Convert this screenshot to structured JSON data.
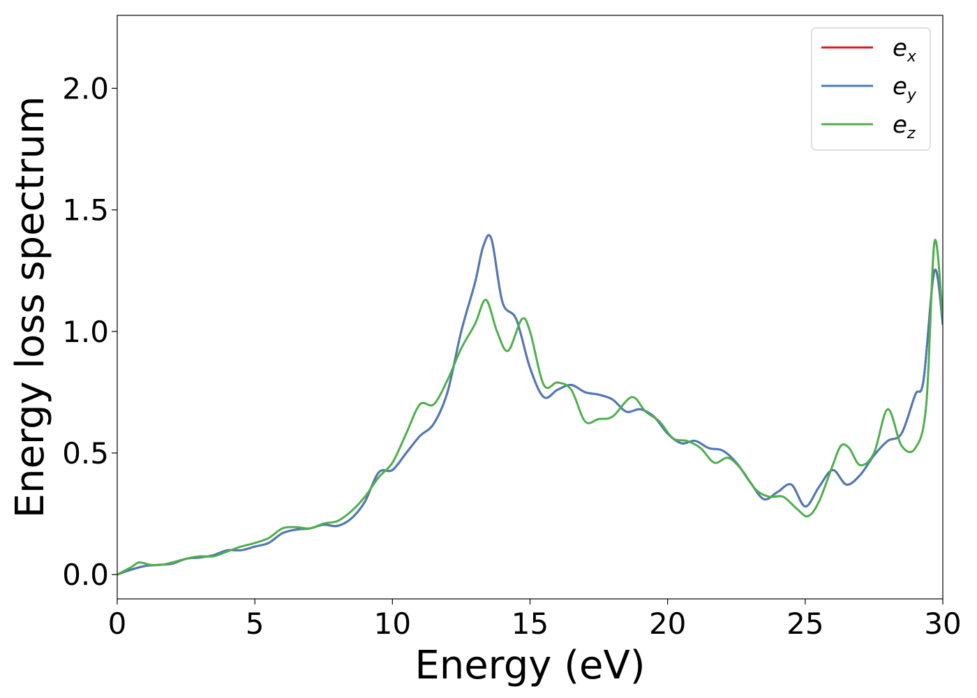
{
  "chart_data": {
    "type": "line",
    "title": "",
    "xlabel": "Energy (eV)",
    "ylabel": "Energy loss spectrum",
    "xlim": [
      0,
      30
    ],
    "ylim": [
      -0.1,
      2.3
    ],
    "grid": false,
    "legend_position": "top-right",
    "x_ticks": [
      0,
      5,
      10,
      15,
      20,
      25,
      30
    ],
    "x_tick_labels": [
      "0",
      "5",
      "10",
      "15",
      "20",
      "25",
      "30"
    ],
    "y_ticks": [
      0.0,
      0.5,
      1.0,
      1.5,
      2.0
    ],
    "y_tick_labels": [
      "0.0",
      "0.5",
      "1.0",
      "1.5",
      "2.0"
    ],
    "series": [
      {
        "name": "ex",
        "label_base": "e",
        "label_sub": "x",
        "color": "#e41a1c",
        "x": [
          0,
          0.5,
          1,
          1.5,
          2,
          2.5,
          3,
          3.5,
          4,
          4.5,
          5,
          5.5,
          6,
          6.5,
          7,
          7.5,
          8,
          8.5,
          9,
          9.5,
          10,
          10.5,
          11,
          11.5,
          12,
          12.5,
          13,
          13.3,
          13.6,
          14,
          14.5,
          15,
          15.5,
          16,
          16.5,
          17,
          17.5,
          18,
          18.5,
          19,
          19.5,
          20,
          20.5,
          21,
          21.5,
          22,
          22.5,
          23,
          23.5,
          24,
          24.5,
          25,
          25.5,
          26,
          26.5,
          27,
          27.5,
          28,
          28.5,
          29,
          29.3,
          29.7,
          30
        ],
        "y": [
          0.0,
          0.02,
          0.035,
          0.04,
          0.045,
          0.065,
          0.07,
          0.08,
          0.1,
          0.1,
          0.115,
          0.13,
          0.17,
          0.185,
          0.19,
          0.205,
          0.2,
          0.23,
          0.3,
          0.42,
          0.43,
          0.5,
          0.57,
          0.62,
          0.75,
          1.0,
          1.2,
          1.35,
          1.38,
          1.12,
          1.05,
          0.85,
          0.73,
          0.76,
          0.78,
          0.75,
          0.74,
          0.72,
          0.67,
          0.68,
          0.65,
          0.58,
          0.54,
          0.55,
          0.52,
          0.51,
          0.46,
          0.38,
          0.31,
          0.34,
          0.37,
          0.28,
          0.36,
          0.43,
          0.37,
          0.41,
          0.49,
          0.55,
          0.58,
          0.74,
          0.8,
          1.25,
          1.03
        ]
      },
      {
        "name": "ey",
        "label_base": "e",
        "label_sub": "y",
        "color": "#4a7ab8",
        "x": [
          0,
          0.5,
          1,
          1.5,
          2,
          2.5,
          3,
          3.5,
          4,
          4.5,
          5,
          5.5,
          6,
          6.5,
          7,
          7.5,
          8,
          8.5,
          9,
          9.5,
          10,
          10.5,
          11,
          11.5,
          12,
          12.5,
          13,
          13.3,
          13.6,
          14,
          14.5,
          15,
          15.5,
          16,
          16.5,
          17,
          17.5,
          18,
          18.5,
          19,
          19.5,
          20,
          20.5,
          21,
          21.5,
          22,
          22.5,
          23,
          23.5,
          24,
          24.5,
          25,
          25.5,
          26,
          26.5,
          27,
          27.5,
          28,
          28.5,
          29,
          29.3,
          29.7,
          30
        ],
        "y": [
          0.0,
          0.02,
          0.035,
          0.04,
          0.045,
          0.065,
          0.07,
          0.08,
          0.1,
          0.1,
          0.115,
          0.13,
          0.17,
          0.185,
          0.19,
          0.205,
          0.2,
          0.23,
          0.3,
          0.42,
          0.43,
          0.5,
          0.57,
          0.62,
          0.75,
          1.0,
          1.2,
          1.35,
          1.38,
          1.12,
          1.05,
          0.85,
          0.73,
          0.76,
          0.78,
          0.75,
          0.74,
          0.72,
          0.67,
          0.68,
          0.65,
          0.58,
          0.54,
          0.55,
          0.52,
          0.51,
          0.46,
          0.38,
          0.31,
          0.34,
          0.37,
          0.28,
          0.36,
          0.43,
          0.37,
          0.41,
          0.49,
          0.55,
          0.58,
          0.74,
          0.8,
          1.25,
          1.03
        ]
      },
      {
        "name": "ez",
        "label_base": "e",
        "label_sub": "z",
        "color": "#4daf4a",
        "x": [
          0,
          0.5,
          0.8,
          1.2,
          1.6,
          2,
          2.5,
          3,
          3.5,
          4,
          4.5,
          5,
          5.5,
          6,
          6.5,
          7,
          7.5,
          8,
          8.5,
          9,
          9.5,
          10,
          10.5,
          11,
          11.5,
          12,
          12.5,
          13,
          13.4,
          13.8,
          14.2,
          14.7,
          15,
          15.5,
          16,
          16.5,
          17,
          17.5,
          18,
          18.7,
          19.2,
          19.7,
          20.2,
          20.7,
          21.2,
          21.7,
          22.2,
          22.7,
          23.2,
          23.7,
          24.2,
          24.7,
          25.1,
          25.5,
          26,
          26.3,
          26.6,
          27,
          27.5,
          28,
          28.5,
          29,
          29.4,
          29.7,
          30
        ],
        "y": [
          0.0,
          0.03,
          0.05,
          0.04,
          0.04,
          0.05,
          0.065,
          0.075,
          0.075,
          0.095,
          0.115,
          0.13,
          0.15,
          0.19,
          0.195,
          0.19,
          0.21,
          0.22,
          0.26,
          0.32,
          0.4,
          0.46,
          0.58,
          0.7,
          0.7,
          0.8,
          0.93,
          1.03,
          1.13,
          1.0,
          0.92,
          1.05,
          1.0,
          0.78,
          0.79,
          0.76,
          0.63,
          0.64,
          0.65,
          0.73,
          0.67,
          0.63,
          0.56,
          0.55,
          0.52,
          0.46,
          0.48,
          0.43,
          0.35,
          0.32,
          0.32,
          0.27,
          0.24,
          0.3,
          0.45,
          0.53,
          0.52,
          0.45,
          0.5,
          0.68,
          0.53,
          0.52,
          0.7,
          1.37,
          1.05
        ]
      }
    ]
  }
}
